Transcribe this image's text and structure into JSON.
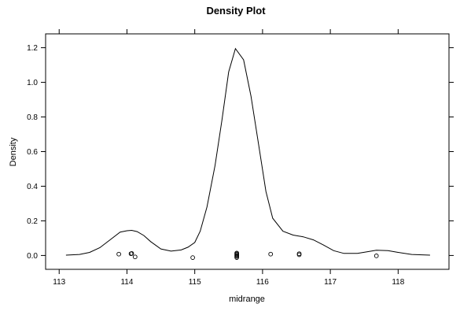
{
  "chart_data": {
    "type": "line",
    "title": "Density Plot",
    "xlabel": "midrange",
    "ylabel": "Density",
    "xlim": [
      112.8,
      118.75
    ],
    "ylim": [
      -0.08,
      1.28
    ],
    "xticks": [
      113,
      114,
      115,
      116,
      117,
      118
    ],
    "xtick_labels": [
      "113",
      "114",
      "115",
      "116",
      "117",
      "118"
    ],
    "yticks": [
      0.0,
      0.2,
      0.4,
      0.6,
      0.8,
      1.0,
      1.2
    ],
    "ytick_labels": [
      "0.0",
      "0.2",
      "0.4",
      "0.6",
      "0.8",
      "1.0",
      "1.2"
    ],
    "grid": false,
    "series": [
      {
        "x": [
          113.1,
          113.3,
          113.45,
          113.6,
          113.75,
          113.9,
          114.0,
          114.07,
          114.15,
          114.25,
          114.35,
          114.5,
          114.65,
          114.8,
          114.9,
          115.0,
          115.08,
          115.18,
          115.3,
          115.4,
          115.5,
          115.6,
          115.72,
          115.83,
          115.95,
          116.05,
          116.15,
          116.3,
          116.45,
          116.6,
          116.75,
          116.9,
          117.05,
          117.2,
          117.4,
          117.55,
          117.68,
          117.85,
          118.0,
          118.2,
          118.47
        ],
        "y": [
          0.002,
          0.006,
          0.018,
          0.045,
          0.09,
          0.135,
          0.143,
          0.145,
          0.138,
          0.115,
          0.08,
          0.038,
          0.025,
          0.032,
          0.048,
          0.075,
          0.14,
          0.28,
          0.52,
          0.78,
          1.06,
          1.195,
          1.13,
          0.92,
          0.62,
          0.37,
          0.215,
          0.14,
          0.118,
          0.108,
          0.09,
          0.06,
          0.028,
          0.012,
          0.012,
          0.022,
          0.03,
          0.028,
          0.018,
          0.006,
          0.002
        ]
      }
    ],
    "rug_points": [
      {
        "x": 113.88,
        "y": 0.008
      },
      {
        "x": 114.06,
        "y": 0.01
      },
      {
        "x": 114.07,
        "y": 0.012
      },
      {
        "x": 114.12,
        "y": -0.008
      },
      {
        "x": 114.97,
        "y": -0.012
      },
      {
        "x": 115.62,
        "y": -0.012
      },
      {
        "x": 115.62,
        "y": -0.006
      },
      {
        "x": 115.62,
        "y": -0.001
      },
      {
        "x": 115.62,
        "y": 0.004
      },
      {
        "x": 115.62,
        "y": 0.009
      },
      {
        "x": 115.62,
        "y": 0.014
      },
      {
        "x": 116.12,
        "y": 0.008
      },
      {
        "x": 116.54,
        "y": 0.004
      },
      {
        "x": 116.54,
        "y": 0.01
      },
      {
        "x": 117.68,
        "y": -0.002
      }
    ]
  }
}
